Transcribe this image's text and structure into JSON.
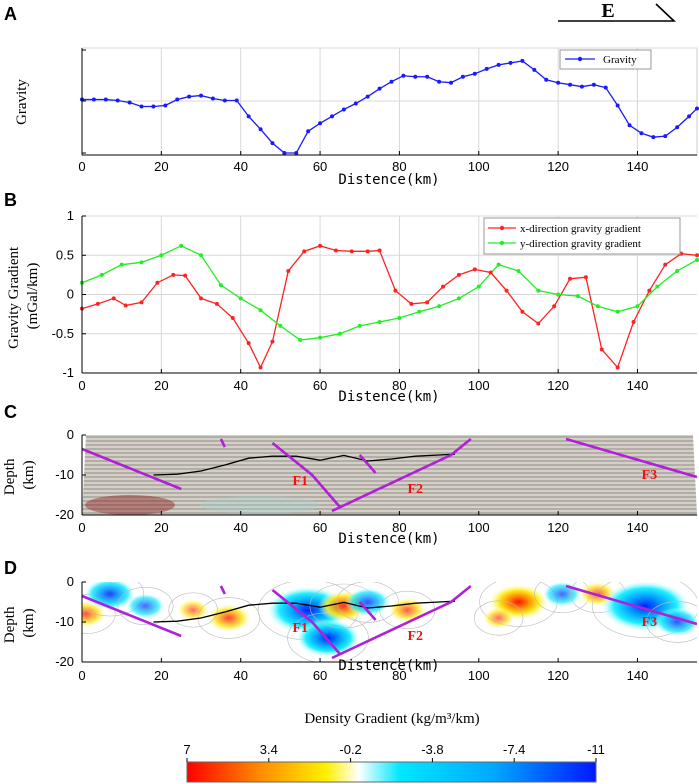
{
  "direction": {
    "label": "E"
  },
  "colors": {
    "gravity": "#1a1aff",
    "x_gradient": "#ff2222",
    "y_gradient": "#22ee22",
    "fault": "#b020d8",
    "fault_label": "#ee1111",
    "contact": "#000000",
    "grid": "#d8d8d8"
  },
  "chart_data": [
    {
      "panel": "A",
      "type": "line",
      "title": "",
      "xlabel": "Distence(km)",
      "ylabel": "Gravity",
      "xlim": [
        0,
        155
      ],
      "ylim": [
        0,
        100
      ],
      "xticks": [
        0,
        20,
        40,
        60,
        80,
        100,
        120,
        140
      ],
      "yticks_labeled": false,
      "legend": "top-right",
      "series": [
        {
          "name": "Gravity",
          "x": [
            0,
            3,
            6,
            9,
            12,
            15,
            18,
            21,
            24,
            27,
            30,
            33,
            36,
            39,
            42,
            45,
            48,
            51,
            54,
            57,
            60,
            63,
            66,
            69,
            72,
            75,
            78,
            81,
            84,
            87,
            90,
            93,
            96,
            99,
            102,
            105,
            108,
            111,
            114,
            117,
            120,
            123,
            126,
            129,
            132,
            135,
            138,
            141,
            144,
            147,
            150,
            153,
            155
          ],
          "y": [
            54,
            54,
            54,
            53,
            51,
            47,
            47,
            48,
            54,
            57,
            58,
            55,
            53,
            53,
            37,
            24,
            10,
            0,
            0,
            22,
            30,
            37,
            44,
            50,
            57,
            65,
            72,
            78,
            77,
            77,
            72,
            71,
            77,
            80,
            85,
            89,
            91,
            93,
            84,
            74,
            71,
            69,
            67,
            69,
            66,
            48,
            28,
            20,
            16,
            17,
            26,
            37,
            45
          ]
        }
      ]
    },
    {
      "panel": "B",
      "type": "line",
      "title": "",
      "xlabel": "Distence(km)",
      "ylabel": "Gravity Gradient (mGal/km)",
      "xlim": [
        0,
        155
      ],
      "ylim": [
        -1,
        1
      ],
      "xticks": [
        0,
        20,
        40,
        60,
        80,
        100,
        120,
        140
      ],
      "yticks": [
        -1,
        -0.5,
        0,
        0.5,
        1
      ],
      "legend": "top-right",
      "series": [
        {
          "name": "x-direction gravity gradient",
          "x": [
            0,
            4,
            8,
            11,
            15,
            19,
            23,
            26,
            30,
            34,
            38,
            42,
            45,
            48,
            52,
            56,
            60,
            64,
            68,
            72,
            75,
            79,
            83,
            87,
            91,
            95,
            99,
            103,
            107,
            111,
            115,
            119,
            123,
            127,
            131,
            135,
            139,
            143,
            147,
            151,
            155
          ],
          "y": [
            -0.18,
            -0.12,
            -0.05,
            -0.14,
            -0.1,
            0.15,
            0.25,
            0.24,
            -0.05,
            -0.12,
            -0.3,
            -0.62,
            -0.93,
            -0.6,
            0.3,
            0.55,
            0.62,
            0.56,
            0.55,
            0.55,
            0.56,
            0.05,
            -0.12,
            -0.1,
            0.1,
            0.25,
            0.32,
            0.28,
            0.05,
            -0.22,
            -0.37,
            -0.15,
            0.2,
            0.22,
            -0.7,
            -0.93,
            -0.35,
            0.05,
            0.38,
            0.52,
            0.5
          ]
        },
        {
          "name": "y-direction gravity gradient",
          "x": [
            0,
            5,
            10,
            15,
            20,
            25,
            30,
            35,
            40,
            45,
            50,
            55,
            60,
            65,
            70,
            75,
            80,
            85,
            90,
            95,
            100,
            105,
            110,
            115,
            120,
            125,
            130,
            135,
            140,
            145,
            150,
            155
          ],
          "y": [
            0.15,
            0.25,
            0.38,
            0.41,
            0.5,
            0.62,
            0.5,
            0.12,
            -0.05,
            -0.2,
            -0.4,
            -0.58,
            -0.55,
            -0.5,
            -0.4,
            -0.35,
            -0.3,
            -0.22,
            -0.15,
            -0.05,
            0.1,
            0.38,
            0.3,
            0.05,
            0.0,
            -0.02,
            -0.15,
            -0.22,
            -0.15,
            0.1,
            0.3,
            0.44
          ]
        }
      ]
    },
    {
      "panel": "C",
      "type": "section",
      "title": "",
      "xlabel": "Distence(km)",
      "ylabel": "Depth (km)",
      "xlim": [
        0,
        155
      ],
      "ylim": [
        -20,
        0
      ],
      "xticks": [
        0,
        20,
        40,
        60,
        80,
        100,
        120,
        140
      ],
      "yticks": [
        -20,
        -10,
        0
      ],
      "contact_line": {
        "x": [
          18,
          24,
          30,
          36,
          42,
          48,
          54,
          60,
          66,
          72,
          78,
          84,
          90,
          94
        ],
        "y": [
          -10,
          -9.8,
          -9,
          -7.5,
          -5.8,
          -5.3,
          -5.3,
          -6.3,
          -5.1,
          -6.5,
          -6.0,
          -5.3,
          -5,
          -4.8
        ]
      },
      "faults": [
        {
          "x": [
            0,
            25
          ],
          "y": [
            -3.5,
            -13.5
          ]
        },
        {
          "x": [
            35,
            36
          ],
          "y": [
            -1,
            -3
          ]
        },
        {
          "x": [
            48,
            58,
            65
          ],
          "y": [
            -2,
            -10,
            -18
          ]
        },
        {
          "x": [
            70,
            74
          ],
          "y": [
            -5,
            -9.5
          ]
        },
        {
          "x": [
            63,
            93,
            98
          ],
          "y": [
            -19,
            -5,
            -1
          ]
        },
        {
          "x": [
            122,
            155
          ],
          "y": [
            -1,
            -10.5
          ]
        }
      ],
      "labels": [
        {
          "text": "F1",
          "x": 55,
          "y": -12.5
        },
        {
          "text": "F2",
          "x": 84,
          "y": -14.5
        },
        {
          "text": "F3",
          "x": 143,
          "y": -11
        }
      ]
    },
    {
      "panel": "D",
      "type": "heatmap",
      "title": "",
      "xlabel": "Distence(km)",
      "ylabel": "Depth (km)",
      "xlim": [
        0,
        155
      ],
      "ylim": [
        -20,
        0
      ],
      "xticks": [
        0,
        20,
        40,
        60,
        80,
        100,
        120,
        140
      ],
      "yticks": [
        -20,
        -10,
        0
      ],
      "colorbar": {
        "title": "Density Gradient (kg/m³/km)",
        "ticks": [
          "7",
          "3.4",
          "-0.2",
          "-3.8",
          "-7.4",
          "-11"
        ],
        "range": [
          7,
          -11
        ]
      },
      "anomalies": [
        {
          "x": 1,
          "y": -8,
          "v": 3.5
        },
        {
          "x": 7,
          "y": -3,
          "v": -5
        },
        {
          "x": 16,
          "y": -6,
          "v": -3
        },
        {
          "x": 37,
          "y": -9,
          "v": 4
        },
        {
          "x": 28,
          "y": -7,
          "v": 2
        },
        {
          "x": 57,
          "y": -7,
          "v": -10
        },
        {
          "x": 62,
          "y": -14,
          "v": -7
        },
        {
          "x": 66,
          "y": -6,
          "v": 5
        },
        {
          "x": 72,
          "y": -5,
          "v": -4
        },
        {
          "x": 82,
          "y": -7,
          "v": 3
        },
        {
          "x": 110,
          "y": -5,
          "v": 6.5
        },
        {
          "x": 105,
          "y": -9,
          "v": 2
        },
        {
          "x": 121,
          "y": -3,
          "v": -3
        },
        {
          "x": 130,
          "y": -3,
          "v": 3
        },
        {
          "x": 142,
          "y": -6,
          "v": -11
        },
        {
          "x": 150,
          "y": -10,
          "v": -4
        }
      ],
      "contact_line": {
        "x": [
          18,
          24,
          30,
          36,
          42,
          48,
          54,
          60,
          66,
          72,
          78,
          84,
          90,
          94
        ],
        "y": [
          -10,
          -9.8,
          -9,
          -7.5,
          -5.8,
          -5.3,
          -5.3,
          -6.3,
          -5.1,
          -6.5,
          -6.0,
          -5.3,
          -5,
          -4.8
        ]
      },
      "faults": [
        {
          "x": [
            0,
            25
          ],
          "y": [
            -3.5,
            -13.5
          ]
        },
        {
          "x": [
            35,
            36
          ],
          "y": [
            -1,
            -3
          ]
        },
        {
          "x": [
            48,
            58,
            65
          ],
          "y": [
            -2,
            -10,
            -18
          ]
        },
        {
          "x": [
            70,
            74
          ],
          "y": [
            -5,
            -9.5
          ]
        },
        {
          "x": [
            63,
            93,
            98
          ],
          "y": [
            -19,
            -5,
            -1
          ]
        },
        {
          "x": [
            122,
            155
          ],
          "y": [
            -1,
            -10.5
          ]
        }
      ],
      "labels": [
        {
          "text": "F1",
          "x": 55,
          "y": -12.5
        },
        {
          "text": "F2",
          "x": 84,
          "y": -14.5
        },
        {
          "text": "F3",
          "x": 143,
          "y": -11
        }
      ]
    }
  ]
}
